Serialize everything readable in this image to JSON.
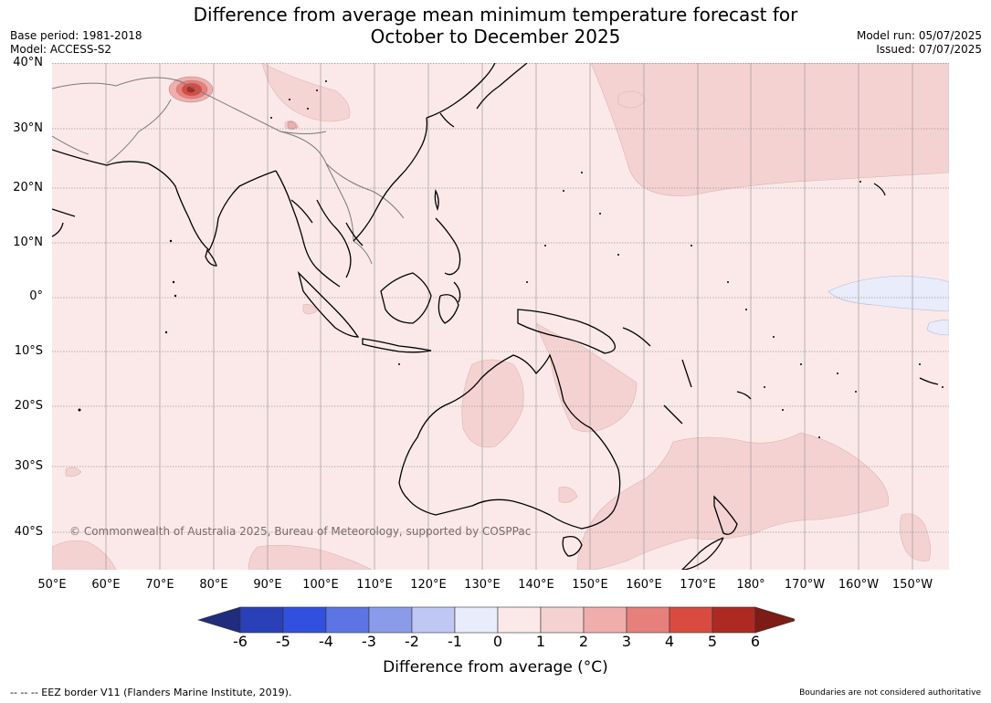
{
  "title": {
    "line1": "Difference from average mean minimum temperature forecast for",
    "line2": "October to December 2025"
  },
  "meta": {
    "base_period": "Base period: 1981-2018",
    "model": "Model: ACCESS-S2",
    "model_run": "Model run: 05/07/2025",
    "issued": "Issued: 07/07/2025"
  },
  "map": {
    "lat_labels": [
      "40°N",
      "30°N",
      "20°N",
      "10°N",
      "0°",
      "10°S",
      "20°S",
      "30°S",
      "40°S"
    ],
    "lon_labels": [
      "50°E",
      "60°E",
      "70°E",
      "80°E",
      "90°E",
      "100°E",
      "110°E",
      "120°E",
      "130°E",
      "140°E",
      "150°E",
      "160°E",
      "170°E",
      "180°",
      "170°W",
      "160°W",
      "150°W"
    ],
    "copyright": "© Commonwealth of Australia 2025, Bureau of Meteorology, supported by COSPPac",
    "colors": {
      "land": "#000000",
      "grid": "#9a9a9a"
    }
  },
  "colorbar": {
    "labels": [
      "-6",
      "-5",
      "-4",
      "-3",
      "-2",
      "-1",
      "0",
      "1",
      "2",
      "3",
      "4",
      "5",
      "6"
    ],
    "colors": [
      "#1f2d7c",
      "#2a40b8",
      "#3150e0",
      "#5c74e4",
      "#8a9bea",
      "#bec8f2",
      "#e8ecfb",
      "#fbe9e9",
      "#f5d2d2",
      "#efaeac",
      "#e77f7a",
      "#d94a40",
      "#ad2a22",
      "#7d1b15"
    ],
    "title": "Difference from average (°C)"
  },
  "footer": {
    "eez": "--  --  -- EEZ border V11 (Flanders Marine Institute, 2019).",
    "disclaimer": "Boundaries are not considered authoritative"
  }
}
